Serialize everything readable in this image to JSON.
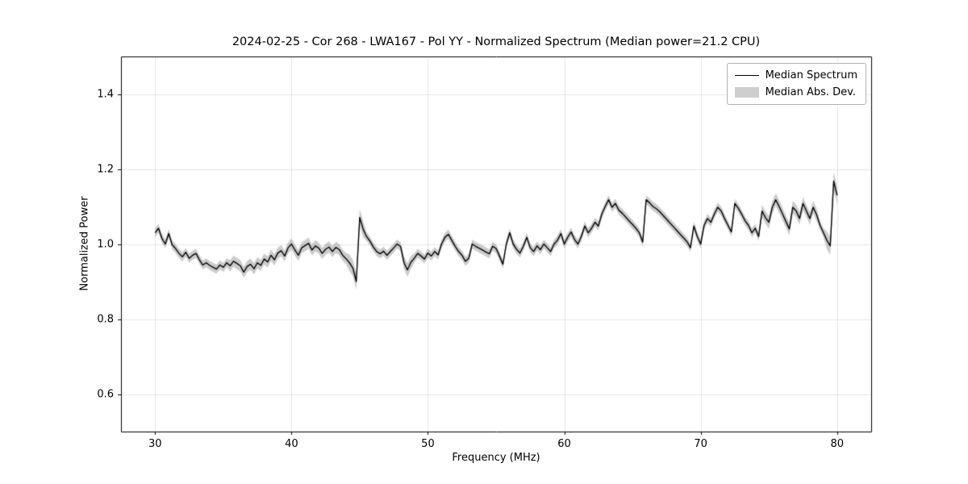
{
  "figure": {
    "background": "#ffffff"
  },
  "chart_data": {
    "type": "line",
    "title": "2024-02-25 - Cor 268 - LWA167 - Pol YY - Normalized Spectrum (Median power=21.2 CPU)",
    "xlabel": "Frequency (MHz)",
    "ylabel": "Normalized Power",
    "xlim": [
      27.5,
      82.5
    ],
    "ylim": [
      0.5,
      1.5
    ],
    "x_ticks": [
      30,
      40,
      50,
      60,
      70,
      80
    ],
    "y_ticks": [
      0.6,
      0.8,
      1.0,
      1.2,
      1.4
    ],
    "grid": true,
    "grid_color": "rgba(0,0,0,0.10)",
    "frame_color": "#000000",
    "line_color": "#000000",
    "band_color": "rgba(160,160,160,0.55)",
    "legend": {
      "position": "upper right",
      "entries": [
        {
          "label": "Median Spectrum",
          "type": "line",
          "color": "#000000"
        },
        {
          "label": "Median Abs. Dev.",
          "type": "patch",
          "color": "#a5a5a5"
        }
      ]
    },
    "series": [
      {
        "name": "Median Spectrum",
        "x_start": 30.0,
        "x_step": 0.25,
        "y": [
          1.03,
          1.042,
          1.015,
          1.0,
          1.028,
          0.998,
          0.988,
          0.975,
          0.966,
          0.978,
          0.962,
          0.97,
          0.975,
          0.958,
          0.944,
          0.95,
          0.943,
          0.938,
          0.933,
          0.944,
          0.938,
          0.95,
          0.942,
          0.954,
          0.948,
          0.942,
          0.925,
          0.94,
          0.946,
          0.934,
          0.95,
          0.943,
          0.96,
          0.952,
          0.97,
          0.958,
          0.976,
          0.982,
          0.968,
          0.99,
          1.0,
          0.984,
          0.97,
          0.99,
          0.996,
          1.002,
          0.984,
          0.995,
          0.989,
          0.975,
          0.986,
          0.992,
          0.98,
          0.991,
          0.985,
          0.97,
          0.961,
          0.95,
          0.936,
          0.9,
          1.071,
          1.04,
          1.02,
          1.008,
          0.992,
          0.98,
          0.974,
          0.981,
          0.97,
          0.98,
          0.99,
          1.0,
          0.993,
          0.95,
          0.931,
          0.951,
          0.962,
          0.975,
          0.968,
          0.96,
          0.976,
          0.968,
          0.98,
          0.971,
          1.0,
          1.018,
          1.026,
          1.01,
          0.994,
          0.98,
          0.97,
          0.954,
          0.962,
          1.0,
          0.994,
          0.989,
          0.984,
          0.979,
          0.974,
          0.994,
          0.988,
          0.968,
          0.946,
          1.0,
          1.03,
          1.0,
          0.986,
          0.976,
          0.994,
          1.018,
          0.99,
          0.98,
          0.995,
          0.985,
          1.0,
          0.99,
          0.98,
          1.0,
          1.01,
          1.028,
          1.0,
          1.018,
          1.032,
          1.012,
          1.0,
          1.02,
          1.048,
          1.03,
          1.042,
          1.058,
          1.048,
          1.08,
          1.1,
          1.118,
          1.098,
          1.108,
          1.09,
          1.082,
          1.072,
          1.062,
          1.052,
          1.042,
          1.03,
          1.005,
          1.118,
          1.11,
          1.1,
          1.094,
          1.086,
          1.076,
          1.066,
          1.056,
          1.046,
          1.036,
          1.026,
          1.016,
          1.006,
          0.99,
          1.048,
          1.02,
          1.0,
          1.05,
          1.068,
          1.058,
          1.08,
          1.098,
          1.088,
          1.068,
          1.05,
          1.032,
          1.108,
          1.096,
          1.08,
          1.062,
          1.05,
          1.03,
          1.042,
          1.02,
          1.088,
          1.07,
          1.058,
          1.098,
          1.118,
          1.1,
          1.08,
          1.06,
          1.04,
          1.098,
          1.088,
          1.068,
          1.108,
          1.088,
          1.068,
          1.098,
          1.078,
          1.05,
          1.03,
          1.01,
          0.995,
          1.168,
          1.13
        ]
      }
    ],
    "band": {
      "name": "Median Abs. Dev.",
      "base": 0.012,
      "wide_regions": [
        {
          "x0": 35.5,
          "x1": 44.0,
          "value": 0.015
        },
        {
          "x0": 44.2,
          "x1": 45.4,
          "value": 0.022
        },
        {
          "x0": 48.2,
          "x1": 48.8,
          "value": 0.018
        },
        {
          "x0": 74.5,
          "x1": 78.5,
          "value": 0.017
        },
        {
          "x0": 79.2,
          "x1": 80.0,
          "value": 0.024
        }
      ]
    }
  }
}
